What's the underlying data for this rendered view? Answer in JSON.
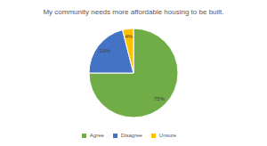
{
  "chart_data": {
    "type": "pie",
    "title": "My community needs more affordable housing to be built.",
    "categories": [
      "Agree",
      "Disagree",
      "Unsure"
    ],
    "values": [
      75,
      21,
      4
    ],
    "value_labels": [
      "75%",
      "21%",
      "4%"
    ],
    "colors": [
      "#70ad47",
      "#4472c4",
      "#ffc000"
    ],
    "data_labels": true,
    "legend": "bottom"
  }
}
